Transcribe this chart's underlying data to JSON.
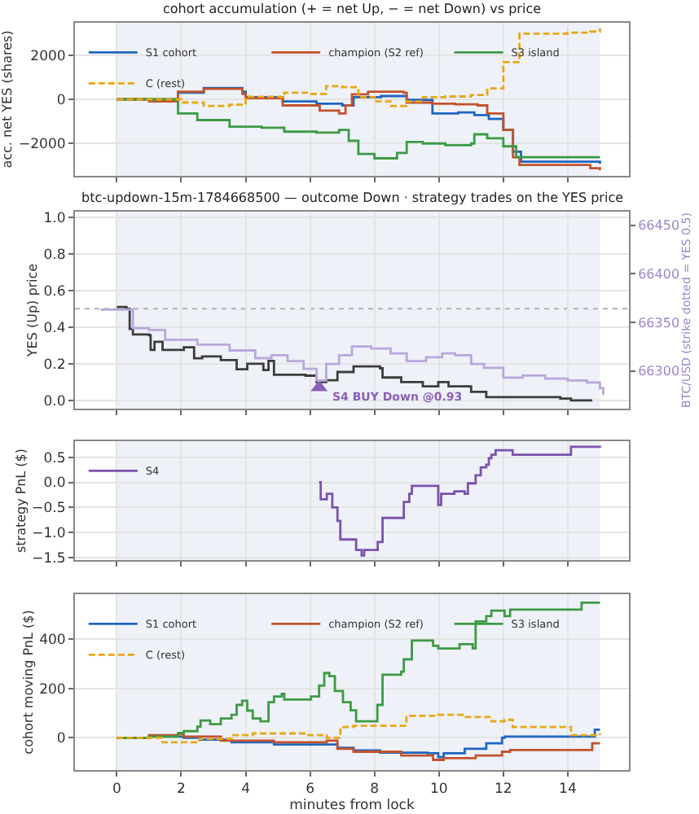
{
  "chart_data": [
    {
      "type": "step",
      "title": "cohort accumulation (+ = net Up, − = net Down) vs price",
      "ylabel": "acc. net YES (shares)",
      "xlim": [
        -1.3,
        15.9
      ],
      "xticks": [
        0,
        2,
        4,
        6,
        8,
        10,
        12,
        14
      ],
      "ylim": [
        -3500,
        3500
      ],
      "yticks": [
        {
          "value": -2000,
          "label": "−2000"
        },
        0,
        2000
      ],
      "tick_labels": "y",
      "grid": true,
      "legend": "top left",
      "bands": [
        {
          "axis": "x",
          "from": 0,
          "to": 15,
          "color": "#eef1f8"
        }
      ],
      "series": [
        {
          "name": "S1 cohort",
          "color": "#1f66c0",
          "x": [
            0,
            1.0,
            1.9,
            2.7,
            3.9,
            4.0,
            5.1,
            5.15,
            6.2,
            7.0,
            7.35,
            8.2,
            9.0,
            9.8,
            10.6,
            11.1,
            11.55,
            12.0,
            12.3,
            12.55,
            14.75,
            15.0
          ],
          "values": [
            0,
            0,
            300,
            520,
            350,
            100,
            100,
            -100,
            -200,
            -280,
            100,
            150,
            -20,
            -650,
            -600,
            -720,
            -900,
            -1400,
            -2400,
            -2850,
            -2850,
            -2950
          ]
        },
        {
          "name": "champion (S2 ref)",
          "color": "#c2532d",
          "x": [
            0,
            1.0,
            1.9,
            2.7,
            3.9,
            4.0,
            5.1,
            5.15,
            6.3,
            6.9,
            7.1,
            7.3,
            7.8,
            8.9,
            9.0,
            9.8,
            10.5,
            11.2,
            11.5,
            12.0,
            12.3,
            12.5,
            14.7,
            15.0
          ],
          "values": [
            0,
            -100,
            350,
            480,
            250,
            50,
            100,
            -280,
            -520,
            -650,
            -280,
            230,
            350,
            300,
            -150,
            -200,
            -230,
            -280,
            -650,
            -1400,
            -2650,
            -3000,
            -3150,
            -3250
          ]
        },
        {
          "name": "S3 island",
          "color": "#3d9a44",
          "x": [
            0,
            1.8,
            1.9,
            2.5,
            3.5,
            4.5,
            5.2,
            6.2,
            6.9,
            7.2,
            7.5,
            8.0,
            8.7,
            9.0,
            9.5,
            10.2,
            11.0,
            11.1,
            11.5,
            12.0,
            12.4,
            15.0
          ],
          "values": [
            0,
            0,
            -650,
            -950,
            -1250,
            -1300,
            -1480,
            -1520,
            -1400,
            -1900,
            -2500,
            -2700,
            -2450,
            -1950,
            -2020,
            -2100,
            -2020,
            -1600,
            -1780,
            -2150,
            -2650,
            -2650
          ]
        },
        {
          "name": "C (rest)",
          "color": "#e8a715",
          "line_style": "dashed",
          "x": [
            0,
            1.5,
            2.0,
            2.7,
            3.5,
            4.0,
            5.1,
            5.2,
            6.0,
            6.5,
            7.0,
            7.5,
            8.0,
            8.5,
            9.0,
            9.5,
            10.2,
            11.0,
            11.5,
            12.0,
            12.5,
            14.0,
            14.7,
            15.0
          ],
          "values": [
            0,
            0,
            -150,
            -300,
            -250,
            120,
            100,
            300,
            250,
            600,
            550,
            100,
            -100,
            -300,
            -100,
            100,
            130,
            200,
            500,
            1700,
            3000,
            3050,
            3100,
            3250
          ]
        }
      ]
    },
    {
      "type": "step",
      "title": "btc-updown-15m-1784668500 — outcome Down · strategy trades on the YES price",
      "ylabel": "YES (Up) price",
      "y2label": "BTC/USD (strike dotted = YES 0.5)",
      "xlim": [
        -1.3,
        15.9
      ],
      "xticks": [
        0,
        2,
        4,
        6,
        8,
        10,
        12,
        14
      ],
      "ylim": [
        -0.045,
        1.03
      ],
      "yticks": [
        {
          "value": 0,
          "label": "0.0"
        },
        0.2,
        0.4,
        0.6,
        0.8,
        {
          "value": 1,
          "label": "1.0"
        }
      ],
      "y2lim": [
        66261,
        66464
      ],
      "y2ticks": [
        66300,
        66350,
        66400,
        66450
      ],
      "tick_labels": "y",
      "grid": true,
      "bands": [
        {
          "axis": "x",
          "from": 0,
          "to": 15,
          "color": "#eef1f8"
        }
      ],
      "ref_lines": [
        {
          "axis": "y",
          "value": 0.5,
          "color": "#b0b0b0",
          "line_style": "dotted"
        }
      ],
      "annotations": [
        {
          "text": "S4 BUY Down @0.93",
          "x": 6.28,
          "y": 0.07
        }
      ],
      "series": [
        {
          "color": "#3c3c3c",
          "x": [
            0,
            0.3,
            0.4,
            0.5,
            1.0,
            1.05,
            1.17,
            1.42,
            2.08,
            2.4,
            2.65,
            3.23,
            3.72,
            4.05,
            4.55,
            4.71,
            4.88,
            5.86,
            6.2,
            6.5,
            6.85,
            7.35,
            8.17,
            8.25,
            8.83,
            9.5,
            9.98,
            10.3,
            11.0,
            11.47,
            12.3,
            13.77,
            14.1,
            14.76
          ],
          "values": [
            0.51,
            0.5,
            0.39,
            0.36,
            0.355,
            0.275,
            0.32,
            0.275,
            0.29,
            0.23,
            0.24,
            0.22,
            0.17,
            0.2,
            0.165,
            0.215,
            0.14,
            0.135,
            0.1,
            0.11,
            0.155,
            0.185,
            0.175,
            0.125,
            0.1,
            0.077,
            0.1,
            0.077,
            0.047,
            0.018,
            0.018,
            0.01,
            0.0,
            0.0
          ]
        },
        {
          "color": "#b9a7dc",
          "axis": "y2",
          "x": [
            -0.5,
            0.5,
            1.0,
            1.5,
            2.5,
            3.5,
            4.3,
            4.8,
            5.3,
            5.8,
            6.2,
            6.5,
            6.9,
            7.3,
            7.9,
            8.5,
            9.0,
            9.6,
            10.1,
            10.5,
            11.0,
            11.4,
            12.0,
            12.6,
            13.3,
            14.0,
            14.6,
            15.0,
            15.1
          ],
          "values": [
            66363,
            66344,
            66342,
            66332,
            66327,
            66321,
            66313,
            66316,
            66310,
            66302,
            66290,
            66307,
            66316,
            66325,
            66323,
            66318,
            66310,
            66314,
            66318,
            66316,
            66307,
            66303,
            66293,
            66295,
            66292,
            66290,
            66288,
            66282,
            66275
          ]
        },
        {
          "type": "scatter",
          "marker": "triangle",
          "color": "#8a5fb5",
          "x": [
            6.28
          ],
          "values": [
            0.07
          ]
        }
      ]
    },
    {
      "type": "step",
      "ylabel": "strategy PnL ($)",
      "xlim": [
        -1.3,
        15.9
      ],
      "xticks": [
        0,
        2,
        4,
        6,
        8,
        10,
        12,
        14
      ],
      "ylim": [
        -1.55,
        0.82
      ],
      "yticks": [
        {
          "value": -1.5,
          "label": "−1.5"
        },
        {
          "value": -1.0,
          "label": "−1.0"
        },
        {
          "value": -0.5,
          "label": "−0.5"
        },
        {
          "value": 0,
          "label": "0.0"
        },
        0.5
      ],
      "tick_labels": "y",
      "grid": true,
      "legend": "top left",
      "bands": [
        {
          "axis": "x",
          "from": 0,
          "to": 15,
          "color": "#eef1f8"
        }
      ],
      "series": [
        {
          "name": "S4",
          "color": "#7b52ae",
          "x": [
            6.28,
            6.33,
            6.52,
            6.69,
            6.85,
            6.94,
            7.27,
            7.43,
            7.6,
            7.68,
            8.0,
            8.1,
            8.25,
            8.83,
            8.91,
            9.08,
            9.16,
            9.82,
            9.98,
            10.07,
            10.48,
            10.8,
            10.9,
            11.14,
            11.3,
            11.47,
            11.55,
            11.63,
            11.76,
            12.2,
            12.29,
            13.94,
            14.1,
            15.0
          ],
          "values": [
            0.0,
            -0.34,
            -0.23,
            -0.5,
            -0.77,
            -1.14,
            -1.14,
            -1.35,
            -1.46,
            -1.35,
            -1.35,
            -1.19,
            -0.71,
            -0.71,
            -0.39,
            -0.23,
            -0.07,
            -0.07,
            -0.45,
            -0.23,
            -0.18,
            -0.23,
            -0.02,
            0.14,
            0.3,
            0.35,
            0.48,
            0.55,
            0.64,
            0.64,
            0.55,
            0.55,
            0.71,
            0.73
          ]
        }
      ]
    },
    {
      "type": "step",
      "xlabel": "minutes from lock",
      "ylabel": "cohort moving PnL ($)",
      "xlim": [
        -1.3,
        15.9
      ],
      "xticks": [
        0,
        2,
        4,
        6,
        8,
        10,
        12,
        14
      ],
      "ylim": [
        -130,
        580
      ],
      "yticks": [
        0,
        200,
        400
      ],
      "grid": true,
      "legend": "top left",
      "bands": [
        {
          "axis": "x",
          "from": 0,
          "to": 15,
          "color": "#eef1f8"
        }
      ],
      "series": [
        {
          "name": "S1 cohort",
          "color": "#1f66c0",
          "x": [
            0,
            1.0,
            1.9,
            2.08,
            2.57,
            3.56,
            4.88,
            6.52,
            6.85,
            7.35,
            8.17,
            9.65,
            9.98,
            10.15,
            10.8,
            11.47,
            11.96,
            12.04,
            14.76,
            14.84,
            15.0
          ],
          "values": [
            0,
            5,
            5,
            0,
            -7,
            -18,
            -27,
            -27,
            -40,
            -51,
            -60,
            -62,
            -78,
            -62,
            -44,
            -22,
            0,
            5,
            5,
            33,
            33
          ]
        },
        {
          "name": "champion (S2 ref)",
          "color": "#c2532d",
          "x": [
            0,
            1.0,
            1.9,
            2.08,
            3.23,
            4.88,
            6.52,
            6.85,
            7.35,
            8.83,
            9.82,
            10.15,
            11.14,
            11.96,
            12.21,
            14.7,
            14.76,
            15.0
          ],
          "values": [
            0,
            11,
            16,
            5,
            -11,
            -18,
            -11,
            -44,
            -56,
            -71,
            -89,
            -82,
            -71,
            -56,
            -49,
            -49,
            -22,
            -22
          ]
        },
        {
          "name": "S3 island",
          "color": "#3d9a44",
          "x": [
            0,
            1.0,
            1.9,
            2.08,
            2.5,
            2.6,
            2.9,
            3.23,
            3.56,
            3.72,
            3.89,
            4.05,
            4.22,
            4.46,
            4.71,
            4.88,
            5.12,
            5.2,
            6.03,
            6.28,
            6.44,
            6.6,
            6.77,
            7.02,
            7.26,
            7.43,
            8.0,
            8.09,
            8.25,
            8.83,
            8.91,
            9.16,
            9.65,
            9.82,
            9.98,
            10.48,
            10.64,
            11.05,
            11.14,
            11.47,
            11.63,
            11.8,
            12.04,
            12.21,
            14.35,
            14.43,
            15.0
          ],
          "values": [
            0,
            5,
            20,
            27,
            45,
            70,
            55,
            78,
            93,
            133,
            150,
            110,
            78,
            67,
            144,
            167,
            178,
            155,
            167,
            211,
            262,
            249,
            189,
            144,
            111,
            67,
            67,
            133,
            255,
            267,
            317,
            393,
            393,
            372,
            361,
            361,
            378,
            361,
            470,
            492,
            514,
            514,
            492,
            518,
            518,
            546,
            546
          ]
        },
        {
          "name": "C (rest)",
          "color": "#e8a715",
          "line_style": "dashed",
          "x": [
            0,
            1.42,
            2.08,
            2.57,
            3.56,
            4.22,
            5.86,
            6.52,
            6.94,
            7.35,
            8.0,
            8.99,
            9.98,
            10.8,
            11.63,
            12.04,
            12.29,
            13.94,
            14.1,
            15.0
          ],
          "values": [
            0,
            -18,
            -18,
            -4,
            11,
            18,
            11,
            0,
            44,
            49,
            49,
            89,
            93,
            84,
            67,
            73,
            44,
            44,
            11,
            18
          ]
        }
      ]
    }
  ]
}
